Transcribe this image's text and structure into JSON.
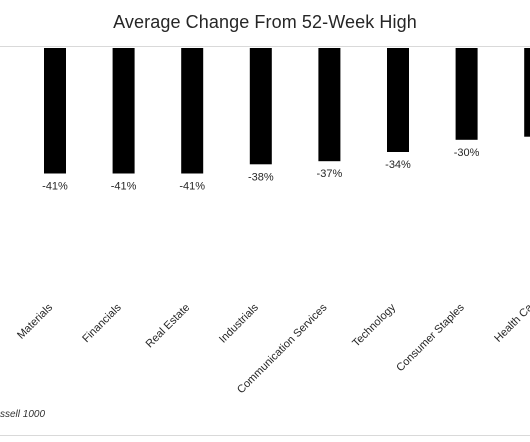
{
  "title": "Average Change From 52-Week High",
  "footnote": "ssell 1000",
  "colors": {
    "bar": "#000000",
    "label": "#262626",
    "border": "#d9d9d9"
  },
  "chart_data": {
    "type": "bar",
    "orientation": "vertical-negative",
    "categories": [
      "Materials",
      "Financials",
      "Real Estate",
      "Industrials",
      "Communication Services",
      "Technology",
      "Consumer Staples",
      "Health Ca"
    ],
    "values": [
      -41,
      -41,
      -41,
      -38,
      -37,
      -34,
      -30,
      -29
    ],
    "value_labels": [
      "-41%",
      "-41%",
      "-41%",
      "-38%",
      "-37%",
      "-34%",
      "-30%",
      "-"
    ],
    "title": "Average Change From 52-Week High",
    "xlabel": "",
    "ylabel": "",
    "grid": false,
    "legend": "none"
  }
}
